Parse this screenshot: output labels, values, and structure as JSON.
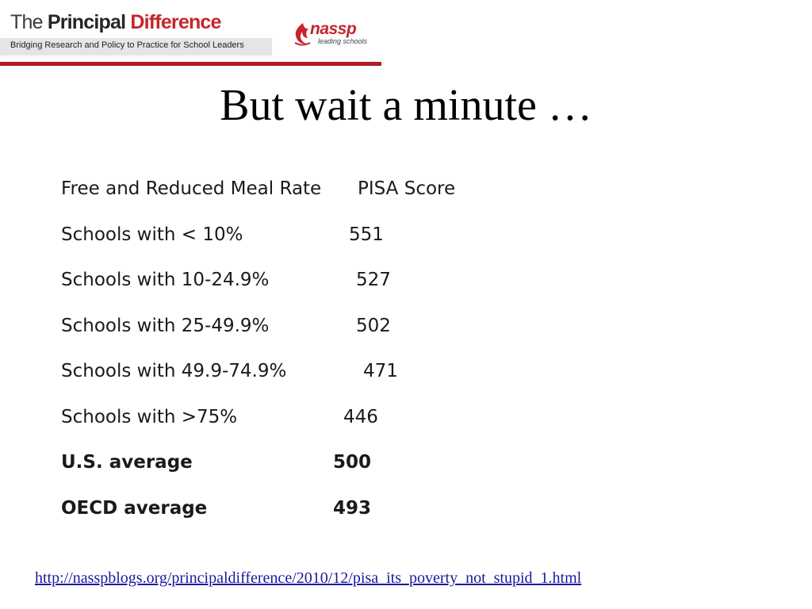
{
  "banner": {
    "title_the": "The ",
    "title_principal": "Principal ",
    "title_difference": "Difference",
    "tagline": "Bridging Research and Policy to Practice for School Leaders",
    "logo_word": "nassp",
    "logo_sub": "leading schools",
    "colors": {
      "brand_red": "#c4262b",
      "strip_gray": "#e5e5e5"
    }
  },
  "slide": {
    "title": "But wait a minute …"
  },
  "table": {
    "header": {
      "label": "Free and Reduced Meal Rate",
      "value": "PISA Score"
    },
    "rows": [
      {
        "label": "Schools with < 10%",
        "value": "551",
        "bold": false
      },
      {
        "label": "Schools with 10-24.9%",
        "value": "527",
        "bold": false
      },
      {
        "label": "Schools with 25-49.9%",
        "value": "502",
        "bold": false
      },
      {
        "label": "Schools with 49.9-74.9%",
        "value": "471",
        "bold": false
      },
      {
        "label": "Schools with >75%",
        "value": "446",
        "bold": false
      },
      {
        "label": "U.S. average",
        "value": "500",
        "bold": true
      },
      {
        "label": "OECD average",
        "value": "493",
        "bold": true
      }
    ]
  },
  "source": {
    "link_text": "http://nasspblogs.org/principaldifference/2010/12/pisa_its_poverty_not_stupid_1.html"
  }
}
